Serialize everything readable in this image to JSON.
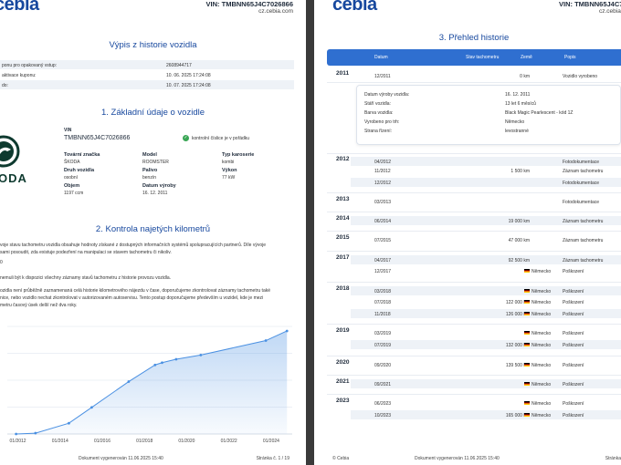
{
  "brand": {
    "logo": "cebia",
    "vin_header": "VIN: TMBNN65J4C7026866",
    "site": "cz.cebia.com",
    "vin_header_short": "VIN: TMBNN65J4C70"
  },
  "page1": {
    "title": "Výpis z historie vozidla",
    "coupon_rows": [
      {
        "label": "ponu pro opakovaný vstup:",
        "value": "2608944717"
      },
      {
        "label": "aktivace kuponu:",
        "value": "10. 06. 2025 17:24:08"
      },
      {
        "label": "do:",
        "value": "10. 07. 2025 17:24:08"
      }
    ],
    "section1_title": "1. Základní údaje o vozidle",
    "vin_label": "VIN",
    "vin_value": "TMBNN65J4C7026866",
    "checksum_note": "kontrolní číslice je v pořádku",
    "brand_text": "ODA",
    "fields": {
      "znacka_label": "Tovární značka",
      "znacka_value": "ŠKODA",
      "model_label": "Model",
      "model_value": "ROOMSTER",
      "karoserie_label": "Typ karoserie",
      "karoserie_value": "kombi",
      "druh_label": "Druh vozidla",
      "druh_value": "osobní",
      "palivo_label": "Palivo",
      "palivo_value": "benzín",
      "vykon_label": "Výkon",
      "vykon_value": "77 kW",
      "objem_label": "Objem",
      "objem_value": "1197 ccm",
      "datum_label": "Datum výroby",
      "datum_value": "16. 12. 2011"
    },
    "section2_title": "2. Kontrola najetých kilometrů",
    "para1_line1": "voje stavu tachometru vozidla obsahuje hodnoty získané z dostupných informačních systémů spolupracujících partnerů. Díle vývoje",
    "para1_line2": "sami posoudit, zda existuje podezření na manipulaci se stavem tachometru či nikoliv.",
    "para1_line3": "0",
    "para2": "nemuli být k dispozici všechny záznamy stavů tachometru z historie provozu vozidla.",
    "para3_line1": "ozidla není průběžně zaznamenaná celá historie kilometrového nájezdu v čase, doporučujeme zkontrolovat záznamy tachometru také",
    "para3_line2": "nice, nebo vozidlo nechat zkontrolovat v autorizovaném autoservisu. Tento postup doporučujeme především u vozidel, kde je mezi",
    "para3_line3": "metru časový úsek delší než dva roky.",
    "footer_center": "Dokument vygenerován 11.06.2025 15:40",
    "footer_right": "Stránka č. 1 / 19"
  },
  "chart_data": {
    "type": "area",
    "x": [
      "2011-12",
      "2012-11",
      "2014-06",
      "2015-07",
      "2017-04",
      "2018-07",
      "2018-11",
      "2019-07",
      "2020-09",
      "2023-10",
      "2024-10"
    ],
    "values": [
      0,
      1500,
      19000,
      47000,
      92500,
      122000,
      126000,
      132000,
      139500,
      165000,
      182000
    ],
    "xtick_labels": [
      "01/2012",
      "01/2014",
      "01/2016",
      "01/2018",
      "01/2020",
      "01/2022",
      "01/2024"
    ],
    "color": "#4a90e2"
  },
  "page2": {
    "title": "3. Přehled historie",
    "headers": {
      "datum": "Datum",
      "tachometr": "Stav tachometru",
      "zeme": "Země",
      "popis": "Popis"
    },
    "detail": {
      "rows": [
        {
          "label": "Datum výroby vozidla:",
          "value": "16. 12. 2011"
        },
        {
          "label": "Stáří vozidla:",
          "value": "13 let 6 měsíců"
        },
        {
          "label": "Barva vozidla:",
          "value": "Black Magic Pearlescent - kód 1Z"
        },
        {
          "label": "Vyrobeno pro trh:",
          "value": "Německo"
        },
        {
          "label": "Strana řízení:",
          "value": "levostranné"
        }
      ]
    },
    "years": [
      "2011",
      "2012",
      "2013",
      "2014",
      "2015",
      "2017",
      "2018",
      "2019",
      "2020",
      "2021",
      "2023"
    ],
    "rows": [
      {
        "date": "12/2011",
        "km": "0 km",
        "country": "",
        "desc": "Vozidlo vyrobeno"
      },
      {
        "date": "04/2012",
        "km": "",
        "country": "",
        "desc": "Fotodokumentace"
      },
      {
        "date": "11/2012",
        "km": "1 500 km",
        "country": "",
        "desc": "Záznam tachometru"
      },
      {
        "date": "12/2012",
        "km": "",
        "country": "",
        "desc": "Fotodokumentace"
      },
      {
        "date": "03/2013",
        "km": "",
        "country": "",
        "desc": "Fotodokumentace"
      },
      {
        "date": "06/2014",
        "km": "19 000 km",
        "country": "",
        "desc": "Záznam tachometru"
      },
      {
        "date": "07/2015",
        "km": "47 000 km",
        "country": "",
        "desc": "Záznam tachometru"
      },
      {
        "date": "04/2017",
        "km": "92 500 km",
        "country": "",
        "desc": "Záznam tachometru"
      },
      {
        "date": "12/2017",
        "km": "",
        "country": "Německo",
        "desc": "Poškození"
      },
      {
        "date": "03/2018",
        "km": "",
        "country": "Německo",
        "desc": "Poškození"
      },
      {
        "date": "07/2018",
        "km": "122 000 km",
        "country": "Německo",
        "desc": "Poškození"
      },
      {
        "date": "11/2018",
        "km": "126 000 km",
        "country": "Německo",
        "desc": "Poškození"
      },
      {
        "date": "03/2019",
        "km": "",
        "country": "Německo",
        "desc": "Poškození"
      },
      {
        "date": "07/2019",
        "km": "132 000 km",
        "country": "Německo",
        "desc": "Poškození"
      },
      {
        "date": "09/2020",
        "km": "139 500 km",
        "country": "Německo",
        "desc": "Poškození"
      },
      {
        "date": "09/2021",
        "km": "",
        "country": "Německo",
        "desc": "Poškození"
      },
      {
        "date": "06/2023",
        "km": "",
        "country": "Německo",
        "desc": "Poškození"
      },
      {
        "date": "10/2023",
        "km": "165 000 km",
        "country": "Německo",
        "desc": "Poškození"
      }
    ],
    "footer_left": "© Cebia",
    "footer_center": "Dokument vygenerován 11.06.2025 15:40",
    "footer_right": "Stránka"
  }
}
